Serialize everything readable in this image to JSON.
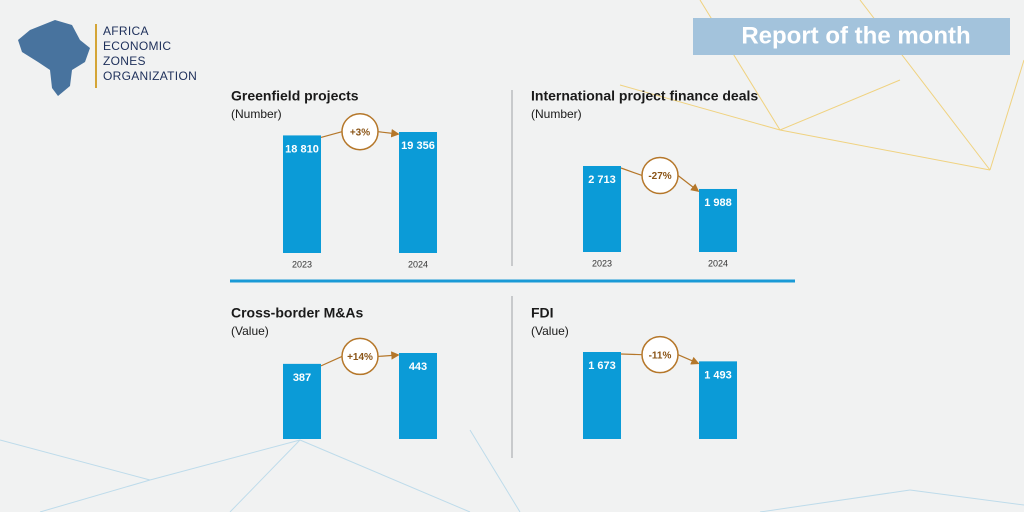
{
  "logo": {
    "lines": [
      "AFRICA",
      "ECONOMIC",
      "ZONES",
      "ORGANIZATION"
    ]
  },
  "banner": "Report of the month",
  "chart_data": [
    {
      "type": "bar",
      "title": "Greenfield projects",
      "subtitle": "(Number)",
      "categories": [
        "2023",
        "2024"
      ],
      "values": [
        18810,
        19356
      ],
      "value_labels": [
        "18 810",
        "19 356"
      ],
      "annotation": "+3%",
      "color": "#0b9bd7"
    },
    {
      "type": "bar",
      "title": "International project finance deals",
      "subtitle": "(Number)",
      "categories": [
        "2023",
        "2024"
      ],
      "values": [
        2713,
        1988
      ],
      "value_labels": [
        "2 713",
        "1 988"
      ],
      "annotation": "-27%",
      "color": "#0b9bd7"
    },
    {
      "type": "bar",
      "title": "Cross-border M&As",
      "subtitle": "(Value)",
      "categories": [
        null,
        null
      ],
      "values": [
        387,
        443
      ],
      "annotation": "+14%",
      "color": "#0b9bd7"
    },
    {
      "type": "bar",
      "title": "FDI",
      "subtitle": "(Value)",
      "categories": [
        null,
        null
      ],
      "values": [
        1673,
        1493
      ],
      "value_labels": [
        "1 673",
        "1 493"
      ],
      "annotation": "-11%",
      "color": "#0b9bd7"
    }
  ]
}
